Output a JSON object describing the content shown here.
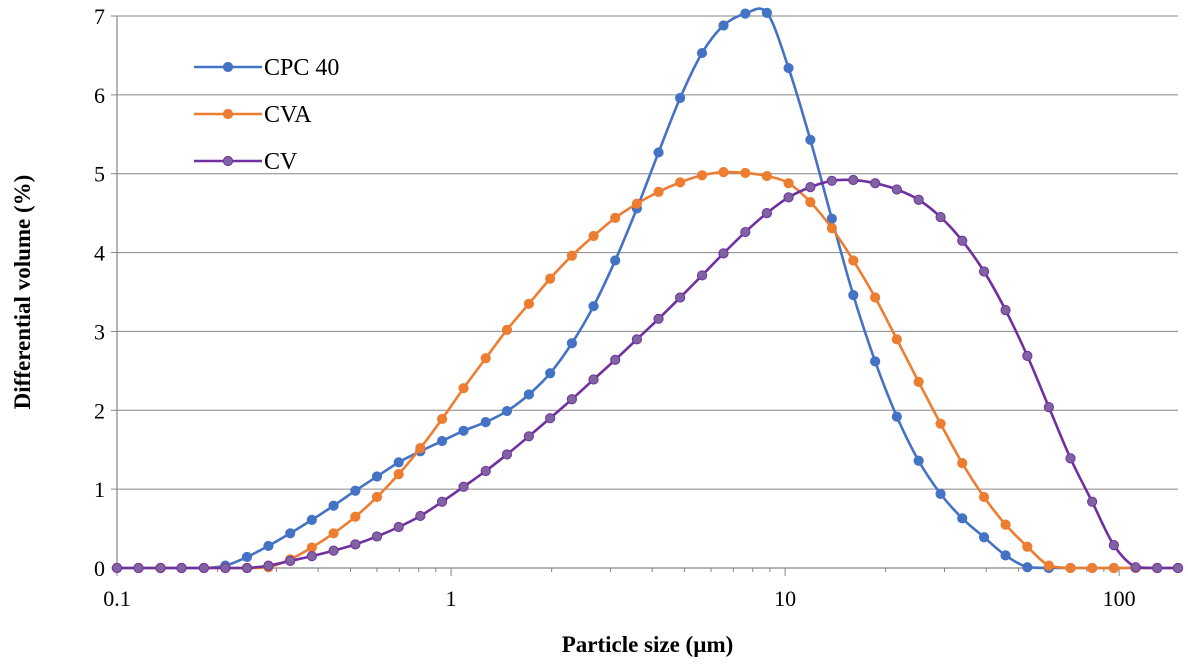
{
  "chart_data": {
    "type": "line",
    "title": "",
    "xlabel": "Particle size (µm)",
    "ylabel": "Differential volume (%)",
    "xscale": "log",
    "xlim": [
      0.1,
      150
    ],
    "ylim": [
      0,
      7
    ],
    "xticks": [
      0.1,
      1,
      10,
      100
    ],
    "xtick_labels": [
      "0.1",
      "1",
      "10",
      "100"
    ],
    "yticks": [
      0,
      1,
      2,
      3,
      4,
      5,
      6,
      7
    ],
    "ytick_labels": [
      "0",
      "1",
      "2",
      "3",
      "4",
      "5",
      "6",
      "7"
    ],
    "grid": "horizontal",
    "legend_position": "top-left",
    "series": [
      {
        "name": "CPC 40",
        "color": "#4472C4",
        "marker_fill": "#4472C4",
        "x": [
          0.1,
          0.116,
          0.135,
          0.156,
          0.182,
          0.211,
          0.245,
          0.284,
          0.33,
          0.383,
          0.445,
          0.517,
          0.6,
          0.697,
          0.809,
          0.94,
          1.09,
          1.27,
          1.47,
          1.71,
          1.98,
          2.3,
          2.67,
          3.1,
          3.6,
          4.18,
          4.85,
          5.64,
          6.54,
          7.6,
          8.82,
          10.24,
          11.9,
          13.8,
          16.0,
          18.6,
          21.6,
          25.1,
          29.2,
          33.9,
          39.4,
          45.7,
          53.1,
          61.6,
          71.5,
          83.0,
          96.4,
          112,
          130,
          150
        ],
        "y": [
          0,
          0,
          0,
          0,
          0,
          0.03,
          0.14,
          0.28,
          0.44,
          0.61,
          0.79,
          0.98,
          1.16,
          1.34,
          1.48,
          1.61,
          1.74,
          1.85,
          1.99,
          2.2,
          2.47,
          2.85,
          3.32,
          3.9,
          4.56,
          5.27,
          5.96,
          6.53,
          6.88,
          7.03,
          7.04,
          6.34,
          5.43,
          4.43,
          3.46,
          2.62,
          1.92,
          1.36,
          0.94,
          0.63,
          0.39,
          0.16,
          0.01,
          0,
          0,
          0,
          0,
          0,
          0,
          0
        ]
      },
      {
        "name": "CVA",
        "color": "#ED7D31",
        "marker_fill": "#ED7D31",
        "x": [
          0.1,
          0.116,
          0.135,
          0.156,
          0.182,
          0.211,
          0.245,
          0.284,
          0.33,
          0.383,
          0.445,
          0.517,
          0.6,
          0.697,
          0.809,
          0.94,
          1.09,
          1.27,
          1.47,
          1.71,
          1.98,
          2.3,
          2.67,
          3.1,
          3.6,
          4.18,
          4.85,
          5.64,
          6.54,
          7.6,
          8.82,
          10.24,
          11.9,
          13.8,
          16.0,
          18.6,
          21.6,
          25.1,
          29.2,
          33.9,
          39.4,
          45.7,
          53.1,
          61.6,
          71.5,
          83.0,
          96.4,
          112,
          130,
          150
        ],
        "y": [
          0,
          0,
          0,
          0,
          0,
          0,
          0,
          0.01,
          0.11,
          0.26,
          0.44,
          0.65,
          0.9,
          1.19,
          1.52,
          1.89,
          2.28,
          2.66,
          3.02,
          3.35,
          3.67,
          3.96,
          4.21,
          4.44,
          4.62,
          4.77,
          4.89,
          4.98,
          5.02,
          5.01,
          4.97,
          4.88,
          4.64,
          4.31,
          3.9,
          3.43,
          2.9,
          2.36,
          1.83,
          1.33,
          0.9,
          0.55,
          0.27,
          0.03,
          0,
          0,
          0,
          0,
          0,
          0
        ]
      },
      {
        "name": "CV",
        "color": "#7030A0",
        "marker_fill": "#8064A2",
        "x": [
          0.1,
          0.116,
          0.135,
          0.156,
          0.182,
          0.211,
          0.245,
          0.284,
          0.33,
          0.383,
          0.445,
          0.517,
          0.6,
          0.697,
          0.809,
          0.94,
          1.09,
          1.27,
          1.47,
          1.71,
          1.98,
          2.3,
          2.67,
          3.1,
          3.6,
          4.18,
          4.85,
          5.64,
          6.54,
          7.6,
          8.82,
          10.24,
          11.9,
          13.8,
          16.0,
          18.6,
          21.6,
          25.1,
          29.2,
          33.9,
          39.4,
          45.7,
          53.1,
          61.6,
          71.5,
          83.0,
          96.4,
          112,
          130,
          150
        ],
        "y": [
          0,
          0,
          0,
          0,
          0,
          0,
          0,
          0.03,
          0.09,
          0.15,
          0.22,
          0.3,
          0.4,
          0.52,
          0.66,
          0.84,
          1.03,
          1.23,
          1.44,
          1.67,
          1.9,
          2.14,
          2.39,
          2.64,
          2.9,
          3.16,
          3.43,
          3.71,
          3.99,
          4.26,
          4.5,
          4.7,
          4.83,
          4.91,
          4.92,
          4.88,
          4.8,
          4.67,
          4.45,
          4.15,
          3.76,
          3.27,
          2.69,
          2.04,
          1.39,
          0.84,
          0.29,
          0.01,
          0,
          0
        ]
      }
    ]
  }
}
